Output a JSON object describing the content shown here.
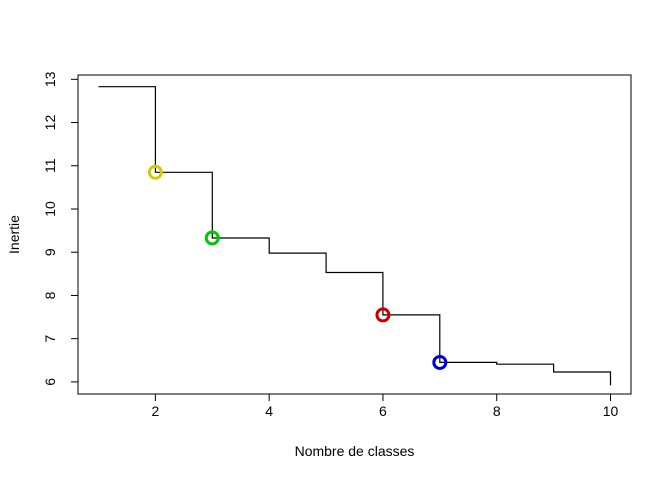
{
  "chart_data": {
    "type": "line",
    "title": "",
    "xlabel": "Nombre de classes",
    "ylabel": "Inertie",
    "xlim": [
      0.64,
      10.36
    ],
    "ylim": [
      5.72,
      13.1
    ],
    "xticks": [
      2,
      4,
      6,
      8,
      10
    ],
    "yticks": [
      6,
      7,
      8,
      9,
      10,
      11,
      12,
      13
    ],
    "grid": false,
    "legend": "none",
    "step_line": {
      "color": "#000000",
      "points": [
        [
          1,
          12.83
        ],
        [
          2,
          12.83
        ],
        [
          2,
          10.85
        ],
        [
          3,
          10.85
        ],
        [
          3,
          9.33
        ],
        [
          4,
          9.33
        ],
        [
          4,
          8.98
        ],
        [
          5,
          8.98
        ],
        [
          5,
          8.53
        ],
        [
          6,
          8.53
        ],
        [
          6,
          7.55
        ],
        [
          7,
          7.55
        ],
        [
          7,
          6.45
        ],
        [
          8,
          6.45
        ],
        [
          8,
          6.41
        ],
        [
          9,
          6.41
        ],
        [
          9,
          6.23
        ],
        [
          10,
          6.23
        ],
        [
          10,
          5.92
        ]
      ]
    },
    "markers": [
      {
        "x": 2,
        "y": 10.85,
        "color": "#cdcd00"
      },
      {
        "x": 3,
        "y": 9.33,
        "color": "#00c800"
      },
      {
        "x": 6,
        "y": 7.55,
        "color": "#cc0000"
      },
      {
        "x": 7,
        "y": 6.45,
        "color": "#0000cc"
      }
    ]
  }
}
